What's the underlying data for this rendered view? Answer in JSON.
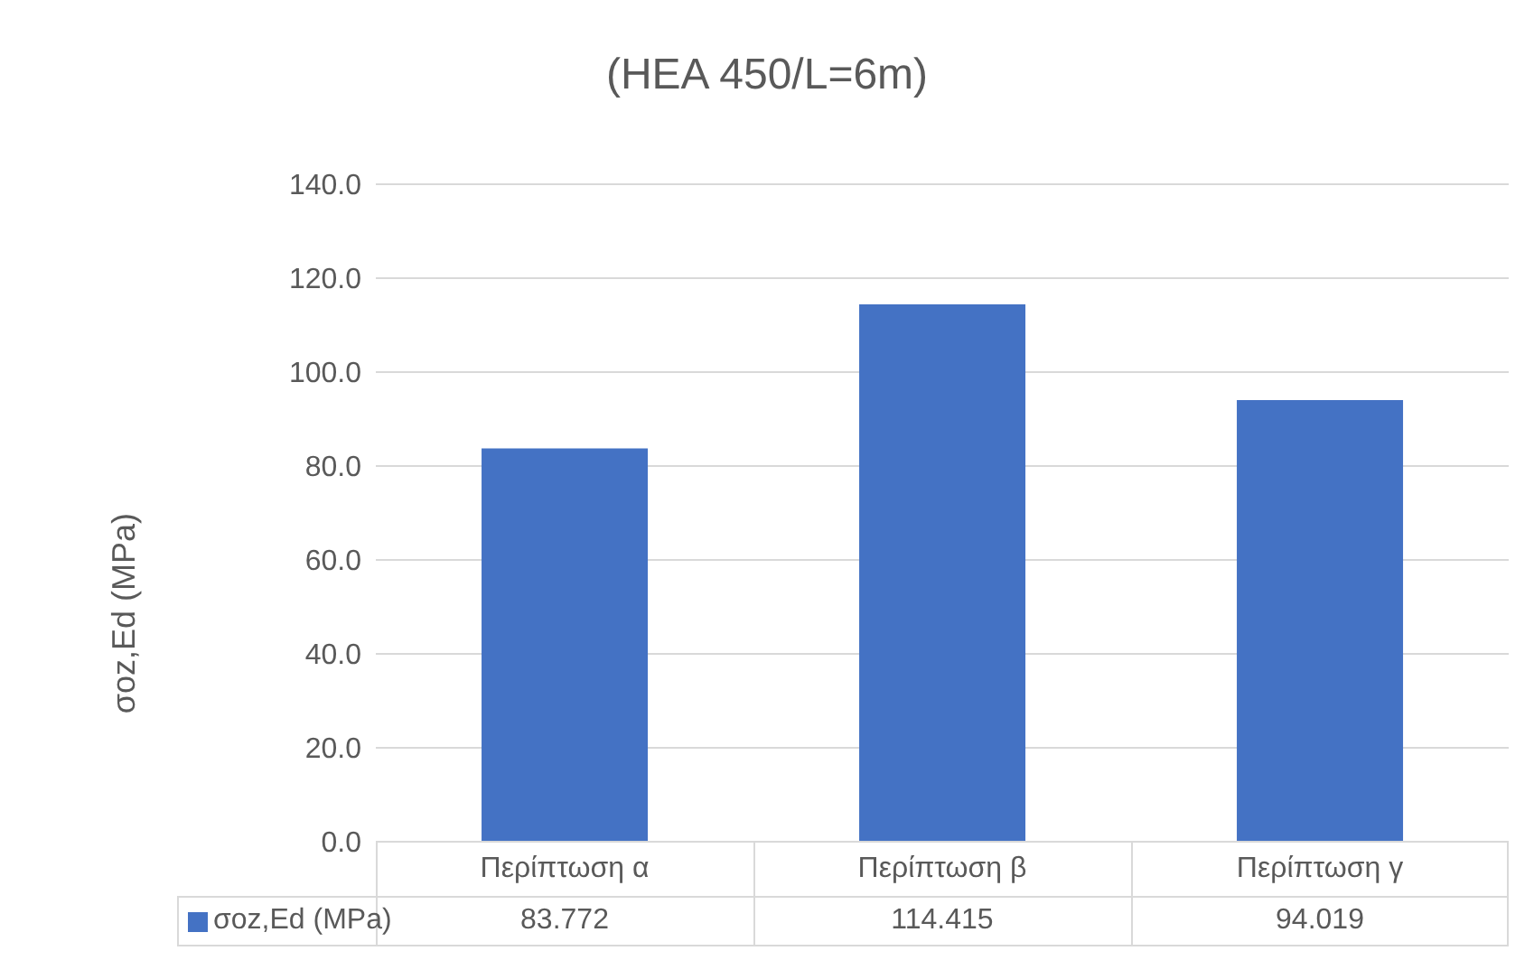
{
  "chart_data": {
    "type": "bar",
    "title": "(HEA 450/L=6m)",
    "ylabel": "σoz,Ed (MPa)",
    "categories": [
      "Περίπτωση α",
      "Περίπτωση β",
      "Περίπτωση γ"
    ],
    "series": [
      {
        "name": "σoz,Ed (MPa)",
        "color": "#4472c4",
        "values": [
          83.772,
          114.415,
          94.019
        ]
      }
    ],
    "ylim": [
      0,
      140
    ],
    "yticks": [
      {
        "value": 0,
        "label": "0.0"
      },
      {
        "value": 20,
        "label": "20.0"
      },
      {
        "value": 40,
        "label": "40.0"
      },
      {
        "value": 60,
        "label": "60.0"
      },
      {
        "value": 80,
        "label": "80.0"
      },
      {
        "value": 100,
        "label": "100.0"
      },
      {
        "value": 120,
        "label": "120.0"
      },
      {
        "value": 140,
        "label": "140.0"
      }
    ],
    "grid": "y",
    "data_labels": true
  }
}
